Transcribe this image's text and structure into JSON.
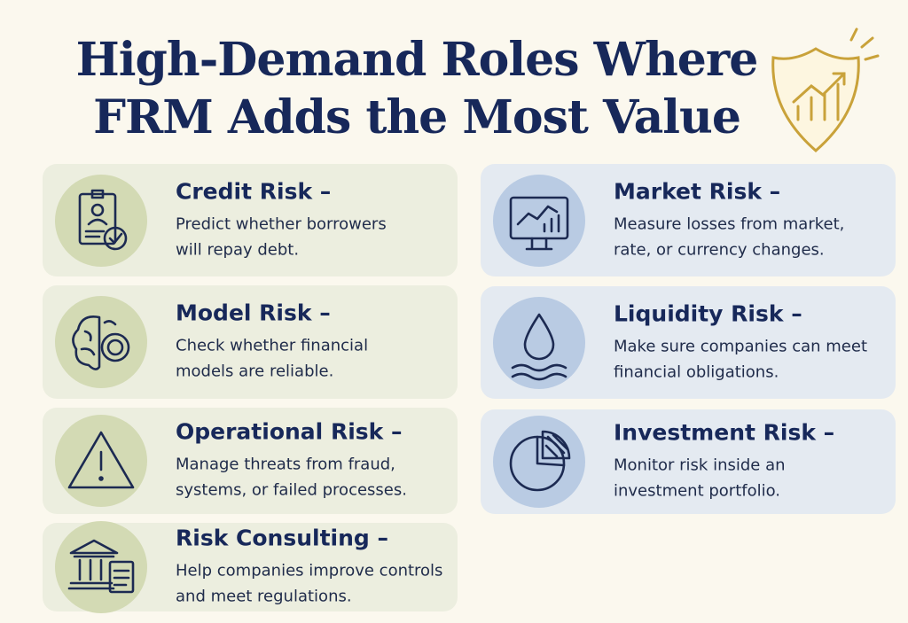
{
  "header": {
    "title": [
      "High-Demand Roles Where",
      "FRM Adds the Most Value"
    ]
  },
  "roles": [
    {
      "title": "Credit Risk –",
      "description": [
        "Predict whether borrowers",
        "will repay debt."
      ]
    },
    {
      "title": "Model Risk –",
      "description": [
        "Check whether financial",
        "models are reliable."
      ]
    },
    {
      "title": "Operational Risk –",
      "description": [
        "Manage threats from fraud,",
        "systems, or failed processes."
      ]
    },
    {
      "title": "Risk Consulting –",
      "description": [
        "Help companies improve controls",
        "and meet regulations."
      ]
    },
    {
      "title": "Market Risk –",
      "description": [
        "Measure losses from market,",
        "rate, or currency changes."
      ]
    },
    {
      "title": "Liquidity Risk –",
      "description": [
        "Make sure companies can meet",
        "financial obligations."
      ]
    },
    {
      "title": "Investment Risk –",
      "description": [
        "Monitor risk inside an",
        "investment portfolio."
      ]
    }
  ]
}
